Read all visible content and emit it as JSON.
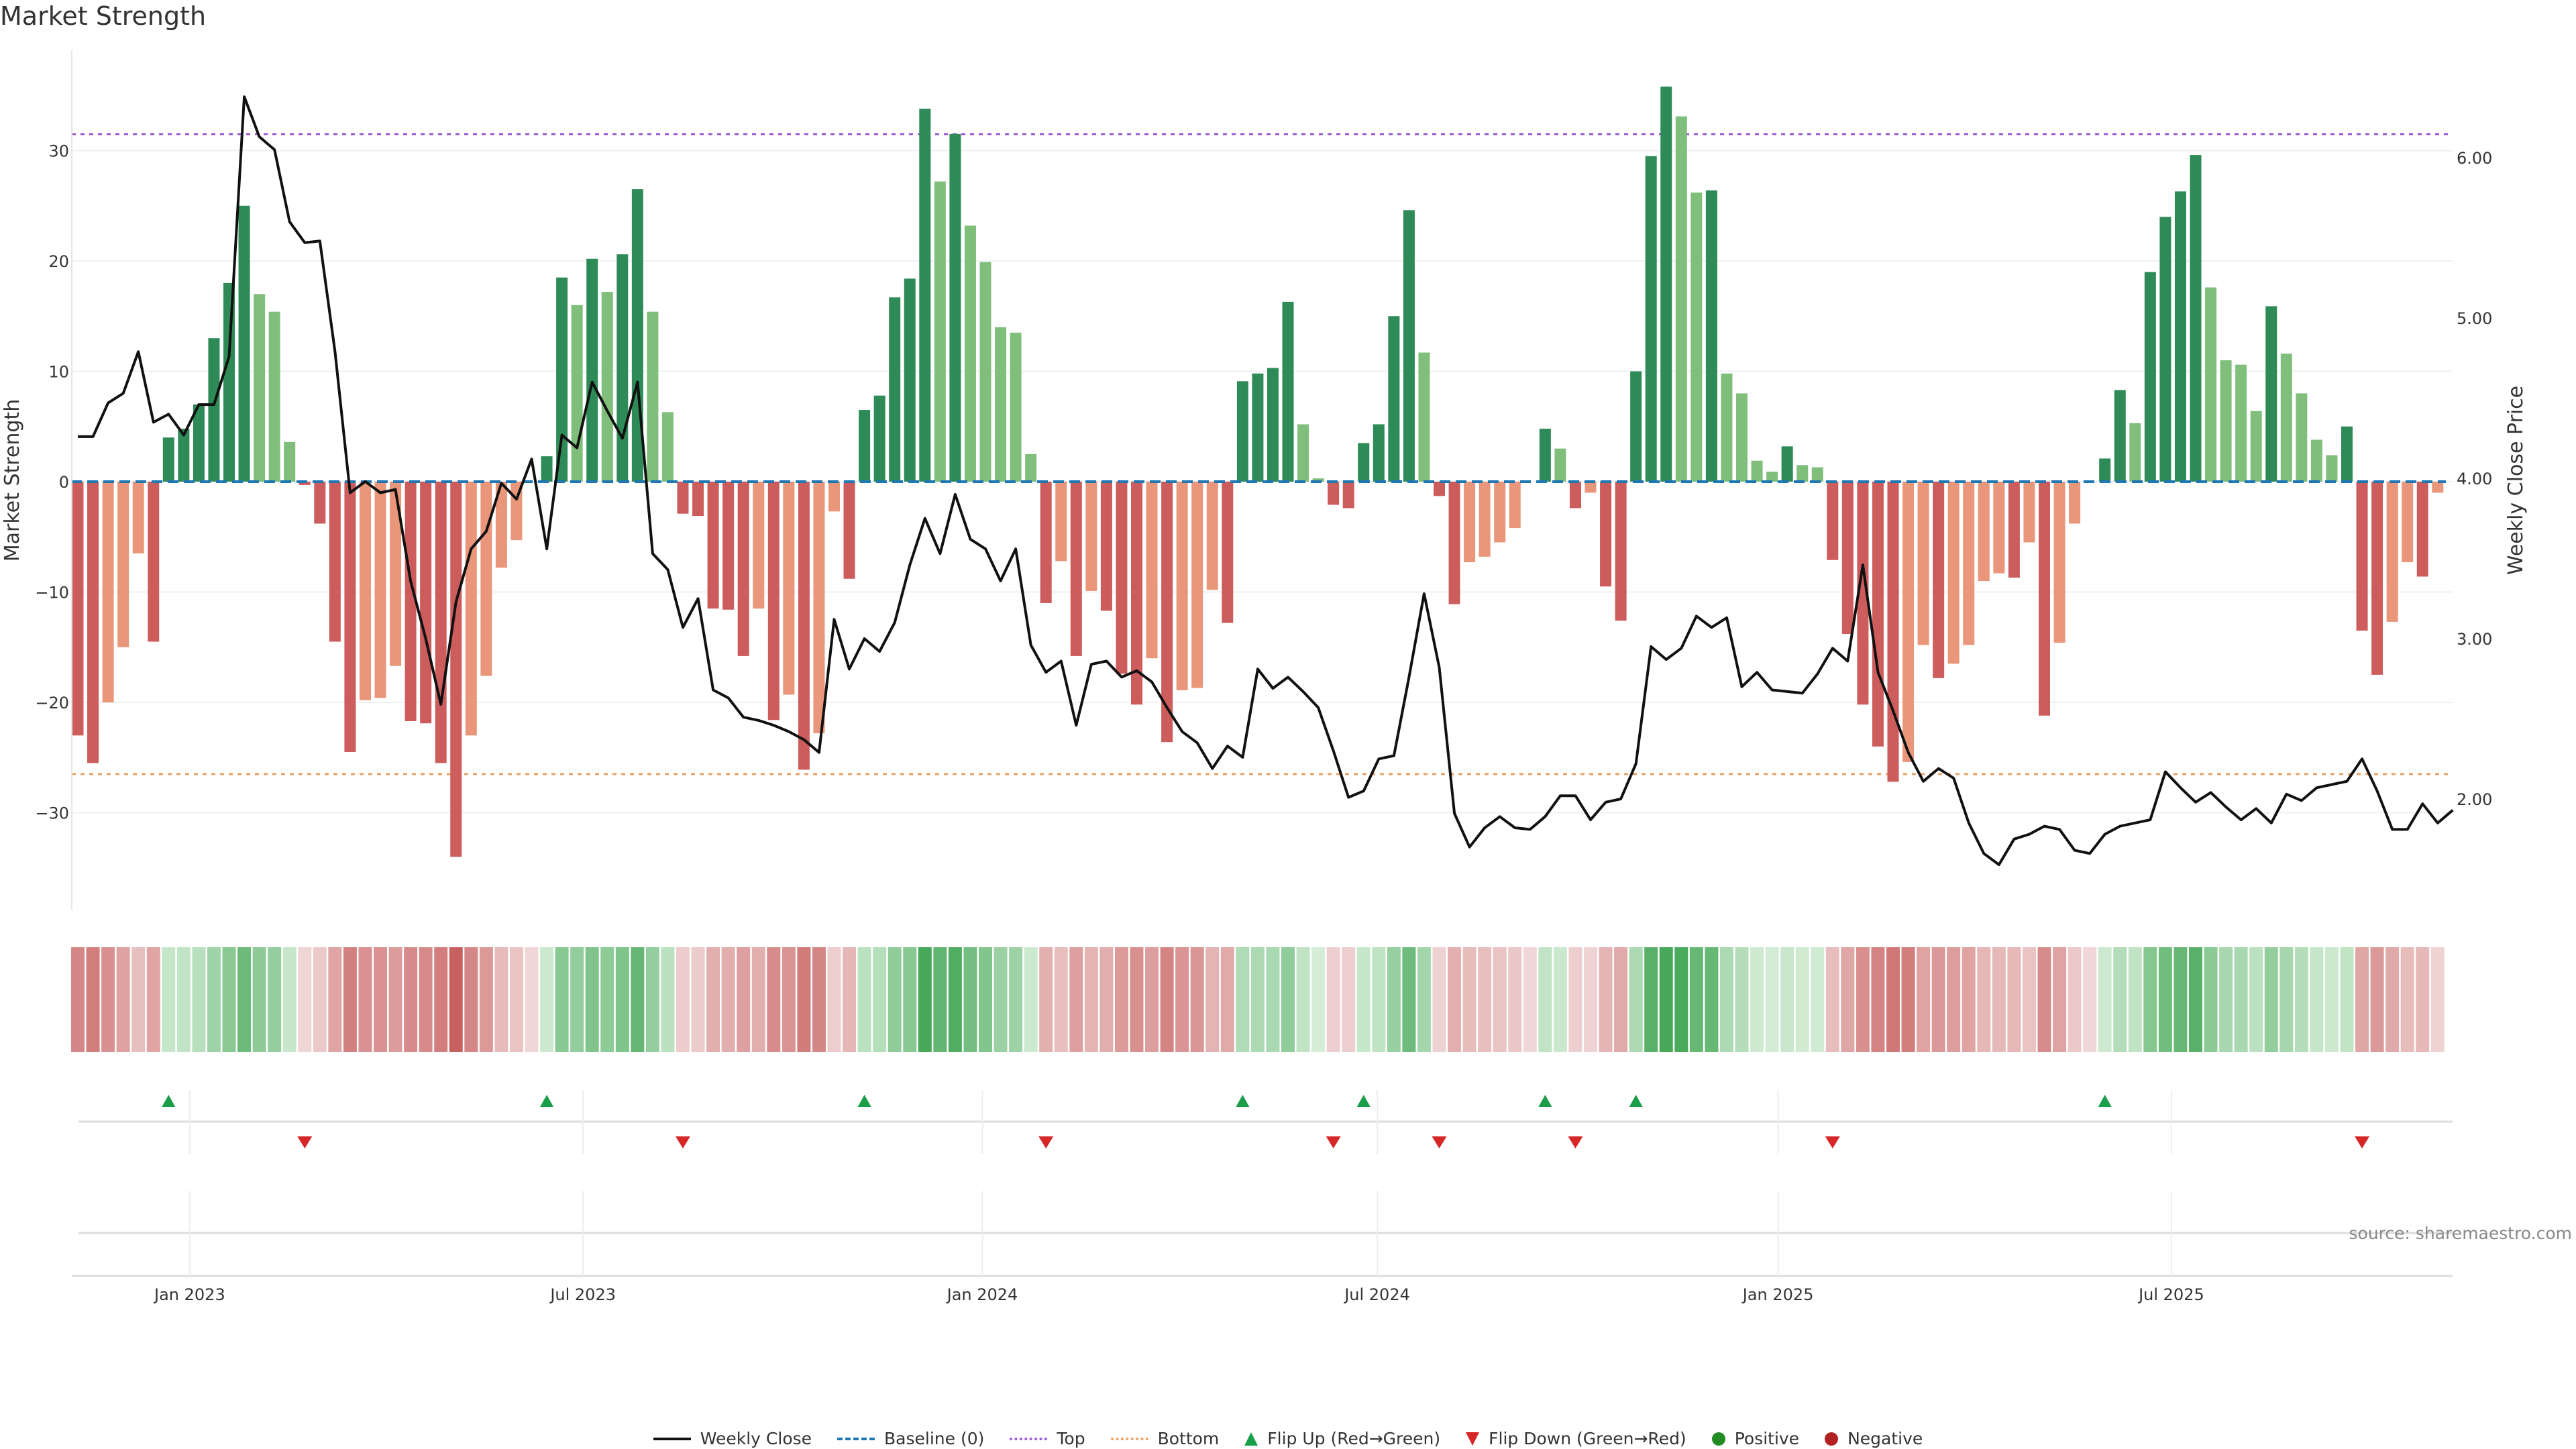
{
  "title": "Market Strength",
  "source": "source: sharemaestro.com",
  "colors": {
    "pos_rising": "#2e8b57",
    "pos_falling": "#7fbf7b",
    "neg_falling": "#cd5c5c",
    "neg_rising": "#e9967a",
    "line": "#111111",
    "baseline": "#1f77b4",
    "top": "#9b59d9",
    "bottom": "#f0a060",
    "flip_up": "#1a9e4a",
    "flip_down": "#d62728",
    "positive": "#228b22",
    "negative": "#b22222"
  },
  "chart_data": {
    "type": "bar",
    "title": "Market Strength",
    "ylabel": "Market Strength",
    "y2label": "Weekly Close Price",
    "ylim": [
      -38,
      39
    ],
    "y2lim": [
      1.4,
      6.6
    ],
    "yticks": [
      "30",
      "20",
      "10",
      "0",
      "−10",
      "−20",
      "−30"
    ],
    "ytick_values": [
      30,
      20,
      10,
      0,
      -10,
      -20,
      -30
    ],
    "y2ticks": [
      "6.00",
      "5.00",
      "4.00",
      "3.00",
      "2.00"
    ],
    "y2tick_values": [
      6,
      5,
      4,
      3,
      2
    ],
    "top_level": 31.5,
    "bottom_level": -26.5,
    "x_ticks": [
      {
        "label": "Jan 2023",
        "week_index": 7.4
      },
      {
        "label": "Jul 2023",
        "week_index": 33.4
      },
      {
        "label": "Jan 2024",
        "week_index": 59.8
      },
      {
        "label": "Jul 2024",
        "week_index": 85.9
      },
      {
        "label": "Jan 2025",
        "week_index": 112.4
      },
      {
        "label": "Jul 2025",
        "week_index": 138.4
      }
    ],
    "strength": [
      -23,
      -25.5,
      -20,
      -15,
      -6.5,
      -14.5,
      4,
      4.8,
      7,
      13,
      18,
      25,
      17,
      15.4,
      3.6,
      -0.3,
      -3.8,
      -14.5,
      -24.5,
      -19.8,
      -19.6,
      -16.7,
      -21.7,
      -21.9,
      -25.5,
      -34,
      -23,
      -17.6,
      -7.8,
      -5.3,
      0,
      2.3,
      18.5,
      16,
      20.2,
      17.2,
      20.6,
      26.5,
      15.4,
      6.3,
      -2.9,
      -3.1,
      -11.5,
      -11.6,
      -15.8,
      -11.5,
      -21.6,
      -19.3,
      -26.1,
      -22.8,
      -2.7,
      -8.8,
      6.5,
      7.8,
      16.7,
      18.4,
      33.8,
      27.2,
      31.5,
      23.2,
      19.9,
      14,
      13.5,
      2.5,
      -11,
      -7.2,
      -15.8,
      -9.9,
      -11.7,
      -17.4,
      -20.2,
      -16,
      -23.6,
      -18.9,
      -18.7,
      -9.8,
      -12.8,
      9.1,
      9.8,
      10.3,
      16.3,
      5.2,
      0.3,
      -2.1,
      -2.4,
      3.5,
      5.2,
      15,
      24.6,
      11.7,
      -1.3,
      -11.1,
      -7.3,
      -6.8,
      -5.5,
      -4.2,
      0,
      4.8,
      3.0,
      -2.4,
      -1,
      -9.5,
      -12.6,
      10,
      29.5,
      35.8,
      33.1,
      26.2,
      26.4,
      9.8,
      8,
      1.9,
      0.9,
      3.2,
      1.5,
      1.3,
      -7.1,
      -13.8,
      -20.2,
      -24,
      -27.2,
      -25.4,
      -14.8,
      -17.8,
      -16.5,
      -14.8,
      -9,
      -8.3,
      -8.7,
      -5.5,
      -21.2,
      -14.6,
      -3.8,
      0,
      2.1,
      8.3,
      5.3,
      19,
      24,
      26.3,
      29.6,
      17.6,
      11,
      10.6,
      6.4,
      15.9,
      11.6,
      8,
      3.8,
      2.4,
      5,
      -13.5,
      -17.5,
      -12.7,
      -7.3,
      -8.6,
      -1
    ],
    "weekly_close": [
      4.26,
      4.26,
      4.47,
      4.53,
      4.79,
      4.35,
      4.4,
      4.27,
      4.46,
      4.46,
      4.76,
      6.38,
      6.13,
      6.05,
      5.6,
      5.47,
      5.48,
      4.79,
      3.91,
      3.98,
      3.91,
      3.93,
      3.36,
      3.0,
      2.59,
      3.23,
      3.56,
      3.67,
      3.97,
      3.87,
      4.12,
      3.56,
      4.27,
      4.19,
      4.6,
      4.42,
      4.25,
      4.6,
      3.53,
      3.43,
      3.07,
      3.25,
      2.68,
      2.63,
      2.51,
      2.49,
      2.46,
      2.42,
      2.37,
      2.29,
      3.12,
      2.81,
      3.0,
      2.92,
      3.1,
      3.46,
      3.75,
      3.53,
      3.9,
      3.62,
      3.56,
      3.36,
      3.56,
      2.96,
      2.79,
      2.86,
      2.46,
      2.84,
      2.86,
      2.76,
      2.8,
      2.73,
      2.57,
      2.42,
      2.35,
      2.19,
      2.33,
      2.26,
      2.81,
      2.69,
      2.76,
      2.67,
      2.57,
      2.3,
      2.01,
      2.05,
      2.25,
      2.27,
      2.76,
      3.28,
      2.82,
      1.91,
      1.7,
      1.82,
      1.89,
      1.82,
      1.81,
      1.89,
      2.02,
      2.02,
      1.87,
      1.98,
      2.0,
      2.22,
      2.95,
      2.87,
      2.94,
      3.14,
      3.07,
      3.13,
      2.7,
      2.79,
      2.68,
      2.67,
      2.66,
      2.78,
      2.94,
      2.86,
      3.46,
      2.79,
      2.55,
      2.29,
      2.11,
      2.19,
      2.13,
      1.85,
      1.66,
      1.59,
      1.75,
      1.78,
      1.83,
      1.81,
      1.68,
      1.66,
      1.78,
      1.83,
      1.85,
      1.87,
      2.17,
      2.07,
      1.98,
      2.04,
      1.95,
      1.87,
      1.94,
      1.85,
      2.03,
      1.99,
      2.07,
      2.09,
      2.11,
      2.25,
      2.05,
      1.81,
      1.81,
      1.97,
      1.85,
      1.93
    ],
    "legend": {
      "placement": "bottom",
      "items": [
        "Weekly Close",
        "Baseline (0)",
        "Top",
        "Bottom",
        "Flip Up (Red→Green)",
        "Flip Down (Green→Red)",
        "Positive",
        "Negative"
      ]
    }
  }
}
